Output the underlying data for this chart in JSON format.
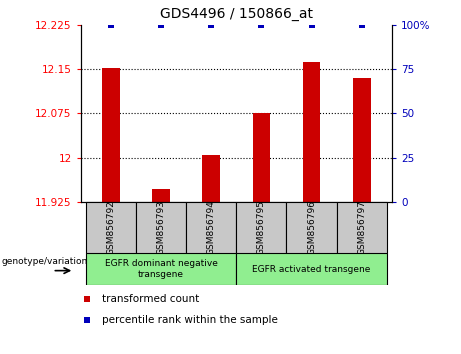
{
  "title": "GDS4496 / 150866_at",
  "samples": [
    "GSM856792",
    "GSM856793",
    "GSM856794",
    "GSM856795",
    "GSM856796",
    "GSM856797"
  ],
  "red_values": [
    12.152,
    11.947,
    12.005,
    12.075,
    12.162,
    12.135
  ],
  "blue_values": [
    100,
    100,
    100,
    100,
    100,
    100
  ],
  "ylim_left": [
    11.925,
    12.225
  ],
  "ylim_right": [
    0,
    100
  ],
  "yticks_left": [
    11.925,
    12.0,
    12.075,
    12.15,
    12.225
  ],
  "yticks_right": [
    0,
    25,
    50,
    75,
    100
  ],
  "ytick_labels_left": [
    "11.925",
    "12",
    "12.075",
    "12.15",
    "12.225"
  ],
  "ytick_labels_right": [
    "0",
    "25",
    "50",
    "75",
    "100%"
  ],
  "hlines": [
    12.0,
    12.075,
    12.15
  ],
  "group1_label": "EGFR dominant negative\ntransgene",
  "group2_label": "EGFR activated transgene",
  "legend_red": "transformed count",
  "legend_blue": "percentile rank within the sample",
  "genotype_label": "genotype/variation",
  "bar_color": "#cc0000",
  "blue_color": "#0000bb",
  "group_bg_color": "#90EE90",
  "sample_bg_color": "#c8c8c8",
  "bar_width": 0.35,
  "bar_bottom": 11.925
}
